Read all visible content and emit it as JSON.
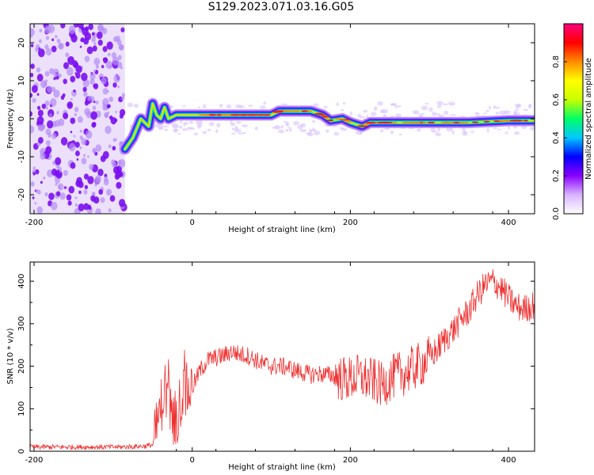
{
  "chart_data": [
    {
      "type": "heatmap",
      "title": "S129.2023.071.03.16.G05",
      "xlabel": "Height of straight line (km)",
      "ylabel": "Frequency (Hz)",
      "xlim": [
        -205,
        433
      ],
      "ylim": [
        -25,
        25
      ],
      "xticks": [
        -200,
        0,
        200,
        400
      ],
      "yticks": [
        -20,
        -10,
        0,
        10,
        20
      ],
      "grid": false,
      "colorbar": {
        "label": "Normalized spectral amplitude",
        "range": [
          0,
          1
        ],
        "ticks": [
          "0.0",
          "0.2",
          "0.4",
          "0.6",
          "0.8"
        ],
        "colors": [
          "#ffffff",
          "#d8b4ff",
          "#8a00ff",
          "#0000ff",
          "#00c8ff",
          "#00ff66",
          "#c8ff00",
          "#ffff00",
          "#ff8c00",
          "#ff0000",
          "#ff0080"
        ]
      },
      "noise_region_x": [
        -205,
        -85
      ],
      "ridge": {
        "x": [
          -85,
          -75,
          -65,
          -55,
          -50,
          -45,
          -40,
          -35,
          -30,
          -20,
          0,
          50,
          100,
          110,
          130,
          150,
          165,
          175,
          190,
          200,
          215,
          225,
          235,
          250,
          300,
          350,
          400,
          433
        ],
        "frequency_hz": [
          -8,
          -5,
          0,
          -2,
          4,
          1,
          0,
          3,
          0,
          1,
          1,
          1,
          1,
          2,
          2,
          2,
          1,
          -0.5,
          0,
          -1,
          -2,
          -1,
          -1,
          -1,
          -1,
          -1,
          -0.5,
          -0.5
        ]
      }
    },
    {
      "type": "line",
      "xlabel": "Height of straight line (km)",
      "ylabel": "SNR (10 * v/v)",
      "xlim": [
        -205,
        433
      ],
      "ylim": [
        0,
        445
      ],
      "xticks": [
        -200,
        0,
        200,
        400
      ],
      "yticks": [
        0,
        100,
        200,
        300,
        400
      ],
      "grid": false,
      "color": "#ef3030",
      "series": [
        {
          "x": [
            -205,
            -180,
            -150,
            -120,
            -90,
            -60,
            -50,
            -45,
            -40,
            -35,
            -30,
            -25,
            -20,
            -15,
            -10,
            -5,
            0,
            10,
            20,
            30,
            40,
            50,
            60,
            70,
            80,
            90,
            100,
            110,
            120,
            130,
            140,
            150,
            160,
            170,
            180,
            190,
            200,
            210,
            220,
            230,
            240,
            250,
            260,
            270,
            280,
            290,
            300,
            310,
            320,
            330,
            340,
            350,
            360,
            370,
            380,
            390,
            400,
            410,
            420,
            433
          ],
          "y": [
            10,
            10,
            10,
            10,
            10,
            12,
            15,
            50,
            100,
            150,
            120,
            80,
            80,
            120,
            140,
            140,
            150,
            190,
            215,
            220,
            225,
            235,
            228,
            225,
            215,
            205,
            200,
            200,
            198,
            190,
            185,
            180,
            182,
            180,
            178,
            170,
            170,
            175,
            170,
            165,
            155,
            170,
            180,
            185,
            195,
            205,
            220,
            240,
            265,
            285,
            310,
            330,
            365,
            390,
            400,
            385,
            360,
            340,
            335,
            345
          ]
        }
      ]
    }
  ]
}
